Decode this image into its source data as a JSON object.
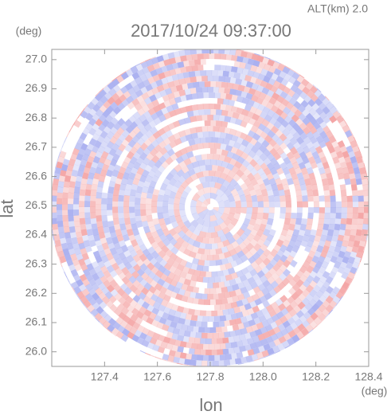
{
  "chart_data": {
    "type": "radar-ppi",
    "title": "2017/10/24 09:37:00",
    "subtitle": "ALT(km) 2.0",
    "x_label": "lon",
    "y_label": "lat",
    "x_unit": "(deg)",
    "y_unit": "(deg)",
    "xlim": [
      127.2,
      128.4
    ],
    "ylim": [
      25.95,
      27.035
    ],
    "xticks": [
      127.4,
      127.6,
      127.8,
      {
        "value": 128,
        "label": "128.0"
      },
      128.2,
      128.4
    ],
    "yticks": [
      {
        "value": 26,
        "label": "26.0"
      },
      26.1,
      26.2,
      26.3,
      26.4,
      26.5,
      26.6,
      26.7,
      26.8,
      26.9,
      {
        "value": 27,
        "label": "27.0"
      }
    ],
    "colors": [
      "#f4a6a6",
      "#aab0f0"
    ]
  }
}
